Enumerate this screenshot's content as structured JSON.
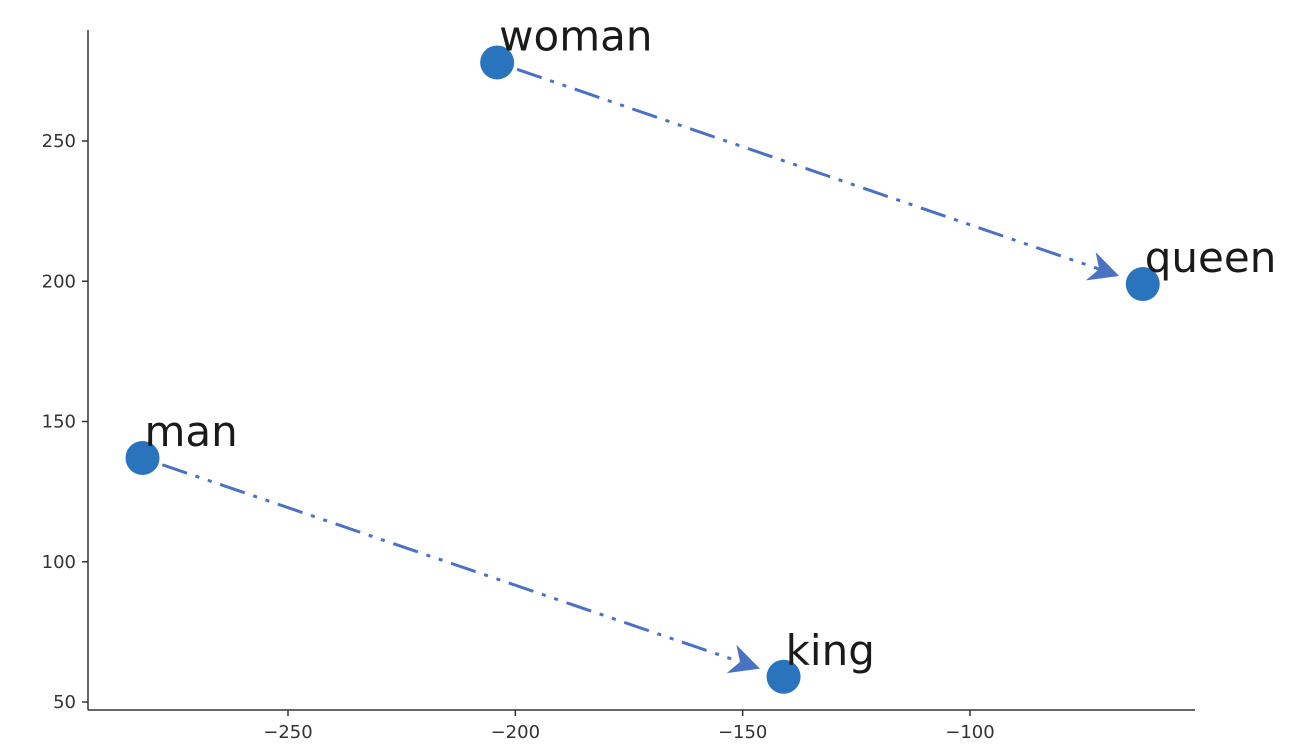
{
  "chart_data": {
    "type": "scatter",
    "title": "",
    "xlabel": "",
    "ylabel": "",
    "xlim": [
      -290,
      -48
    ],
    "ylim": [
      48,
      290
    ],
    "grid": false,
    "x_ticks": [
      -250,
      -200,
      -150,
      -100
    ],
    "y_ticks": [
      50,
      100,
      150,
      200,
      250
    ],
    "x_tick_labels": [
      "−250",
      "−200",
      "−150",
      "−100"
    ],
    "y_tick_labels": [
      "50",
      "100",
      "150",
      "200",
      "250"
    ],
    "points": [
      {
        "label": "woman",
        "x": -204,
        "y": 278
      },
      {
        "label": "queen",
        "x": -62,
        "y": 199
      },
      {
        "label": "man",
        "x": -282,
        "y": 137
      },
      {
        "label": "king",
        "x": -141,
        "y": 59
      }
    ],
    "arrows": [
      {
        "from": "woman",
        "to": "queen"
      },
      {
        "from": "man",
        "to": "king"
      }
    ],
    "colors": {
      "point": "#2a74bd",
      "arrow": "#4a72c4",
      "axis": "#333333"
    }
  }
}
